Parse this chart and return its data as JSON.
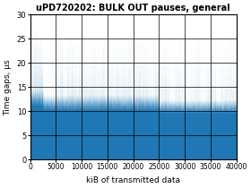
{
  "title": "uPD720202: BULK OUT pauses, general",
  "xlabel": "kiB of transmitted data",
  "ylabel": "Time gaps, μs",
  "xlim": [
    0,
    40000
  ],
  "ylim": [
    0,
    30
  ],
  "yticks": [
    0,
    5,
    10,
    15,
    20,
    25,
    30
  ],
  "xticks": [
    0,
    5000,
    10000,
    15000,
    20000,
    25000,
    30000,
    35000,
    40000
  ],
  "xtick_labels": [
    "0",
    "5000",
    "10000",
    "15000",
    "20000",
    "25000",
    "30000",
    "35000",
    "40000"
  ],
  "line_color": "#1f77b4",
  "bg_color": "#ffffff",
  "base_low": 10.0,
  "base_high": 13.5,
  "spike_prob": 0.04,
  "spike_low": 15.0,
  "spike_high": 28.0,
  "early_base_low": 11.0,
  "early_base_high": 14.5,
  "early_spike_prob": 0.12,
  "seed": 123
}
